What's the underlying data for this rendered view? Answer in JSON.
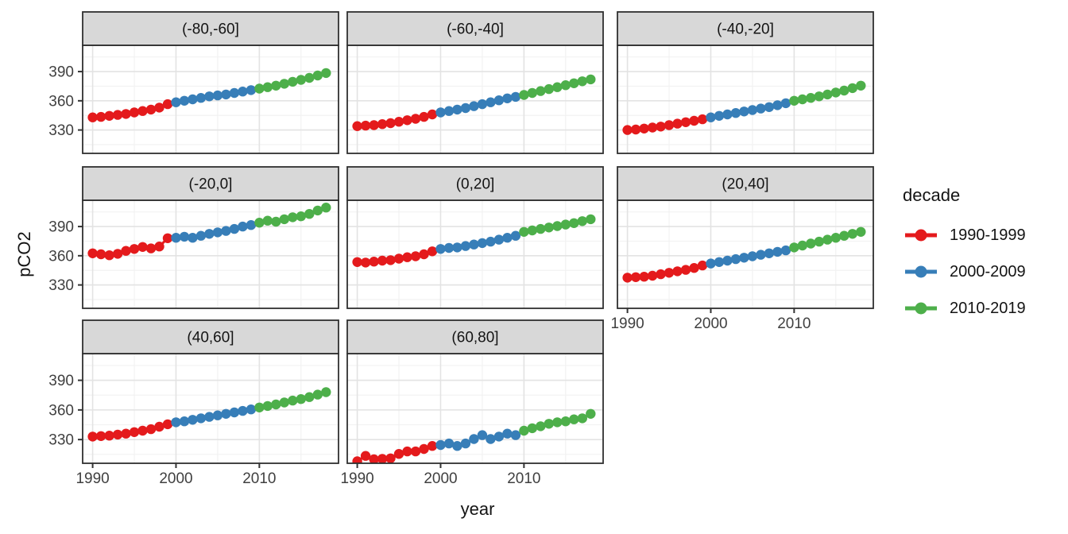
{
  "chart_data": {
    "type": "scatter",
    "xlabel": "year",
    "ylabel": "pCO2",
    "facet_variable": "latitude band",
    "x": [
      1990,
      1991,
      1992,
      1993,
      1994,
      1995,
      1996,
      1997,
      1998,
      1999,
      2000,
      2001,
      2002,
      2003,
      2004,
      2005,
      2006,
      2007,
      2008,
      2009,
      2010,
      2011,
      2012,
      2013,
      2014,
      2015,
      2016,
      2017,
      2018
    ],
    "x_ticks": [
      1990,
      2000,
      2010
    ],
    "y_ticks": [
      330,
      360,
      390
    ],
    "xlim": [
      1988.8,
      2019.5
    ],
    "ylim": [
      306,
      417
    ],
    "grid": "major+minor",
    "legend": {
      "title": "decade",
      "position": "right",
      "entries": [
        {
          "label": "1990-1999",
          "color": "#E41A1C",
          "years": [
            1990,
            1999
          ]
        },
        {
          "label": "2000-2009",
          "color": "#377EB8",
          "years": [
            2000,
            2009
          ]
        },
        {
          "label": "2010-2019",
          "color": "#4DAF4A",
          "years": [
            2010,
            2019
          ]
        }
      ]
    },
    "facets": [
      {
        "label": "(-80,-60]",
        "values": [
          343,
          343.5,
          344.5,
          345.5,
          346.5,
          348,
          349.5,
          351,
          353,
          356.5,
          358.5,
          360,
          361.5,
          363,
          364.5,
          365.5,
          366.5,
          368,
          369.5,
          371,
          372.5,
          374,
          375.5,
          377.5,
          379.5,
          381.5,
          383.5,
          386,
          388.5
        ]
      },
      {
        "label": "(-60,-40]",
        "values": [
          334,
          334.5,
          335,
          336,
          337,
          338.5,
          340,
          341.5,
          343.5,
          346,
          348,
          349.5,
          351,
          352.5,
          354.5,
          356.5,
          358.5,
          360.5,
          362.5,
          364,
          366,
          368,
          370,
          372,
          374,
          376,
          378,
          380,
          382
        ]
      },
      {
        "label": "(-40,-20]",
        "values": [
          330,
          330.5,
          331.5,
          332.5,
          333.5,
          335,
          336.5,
          338,
          339.5,
          341,
          343,
          344.5,
          346,
          347.5,
          349,
          350.5,
          352,
          353.5,
          355.5,
          357.5,
          360,
          361.5,
          363,
          364.5,
          366.5,
          368.5,
          370.5,
          373,
          375.5
        ]
      },
      {
        "label": "(-20,0]",
        "values": [
          362.5,
          361.5,
          360.5,
          362,
          365,
          367,
          369,
          367.5,
          369.5,
          378,
          378.5,
          379.5,
          378.5,
          380.5,
          382.5,
          384,
          385.5,
          387.5,
          390,
          391.5,
          394,
          396,
          395,
          397.5,
          399.5,
          400.5,
          403,
          406.5,
          409.5
        ]
      },
      {
        "label": "(0,20]",
        "values": [
          353.5,
          353,
          354,
          355,
          355.5,
          357,
          358.5,
          359.5,
          361.5,
          364.5,
          367,
          368,
          368.5,
          370,
          371.5,
          373,
          374.5,
          376.5,
          378.5,
          380.5,
          384.5,
          386,
          387.5,
          389,
          390.5,
          392,
          393.5,
          395.5,
          397.5
        ]
      },
      {
        "label": "(20,40]",
        "values": [
          337.5,
          338,
          338.5,
          339.5,
          341,
          342.5,
          344,
          345.5,
          347.5,
          350,
          352,
          353.5,
          355,
          356.5,
          358,
          359.5,
          361,
          362.5,
          364,
          365.5,
          368.5,
          370.5,
          372.5,
          374.5,
          376.5,
          378.5,
          380.5,
          382.5,
          384.5
        ]
      },
      {
        "label": "(40,60]",
        "values": [
          333,
          333.5,
          334,
          335,
          336,
          337.5,
          339,
          340.5,
          343,
          345.5,
          347.5,
          348.5,
          350,
          351.5,
          353,
          354.5,
          356,
          357.5,
          359,
          360.5,
          362.5,
          364,
          365.5,
          367.5,
          369.5,
          371,
          373,
          375.5,
          378
        ]
      },
      {
        "label": "(60,80]",
        "values": [
          308,
          313.5,
          310,
          310.5,
          311,
          315.5,
          318,
          318,
          320.5,
          323.5,
          324.5,
          326,
          323.5,
          326,
          330.5,
          334.5,
          330.5,
          333,
          336,
          334.5,
          339,
          341.5,
          343.5,
          346,
          347.5,
          348.5,
          350.5,
          351.5,
          356
        ]
      }
    ]
  }
}
